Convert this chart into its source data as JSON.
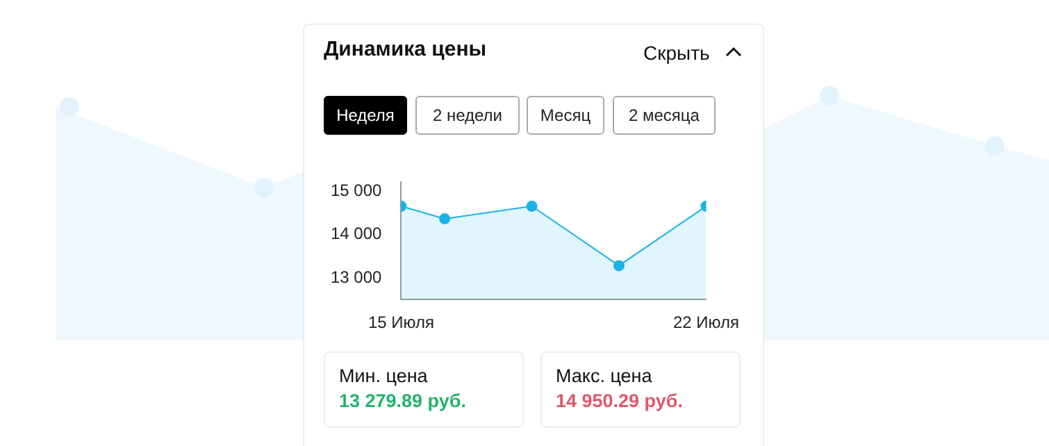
{
  "chart_data": {
    "type": "area",
    "title": "Динамика цены",
    "x": [
      "--07-15",
      "--07-16",
      "--07-18",
      "--07-20",
      "--07-22"
    ],
    "series": [
      {
        "color": "#1ab3e6",
        "values": [
          14650,
          14360,
          14650,
          13280,
          14650
        ]
      }
    ],
    "xlim": [
      "--07-15",
      "--07-22"
    ],
    "xticks": [
      {
        "value": "--07-15",
        "label": "15 Июля"
      },
      {
        "value": "--07-22",
        "label": "22 Июля"
      }
    ],
    "ylim": [
      12500,
      15200
    ],
    "yticks": [
      {
        "value": 13000,
        "label": "13 000"
      },
      {
        "value": 14000,
        "label": "14 000"
      },
      {
        "value": 15000,
        "label": "15 000"
      }
    ],
    "grid": false,
    "legend": false,
    "marker": "circle",
    "line_style": "solid",
    "annotations": [
      "Скрыть",
      "Неделя",
      "2 недели",
      "Месяц",
      "2 месяца",
      "Мин. цена",
      "13 279.89 руб.",
      "Макс. цена",
      "14 950.29 руб."
    ]
  }
}
